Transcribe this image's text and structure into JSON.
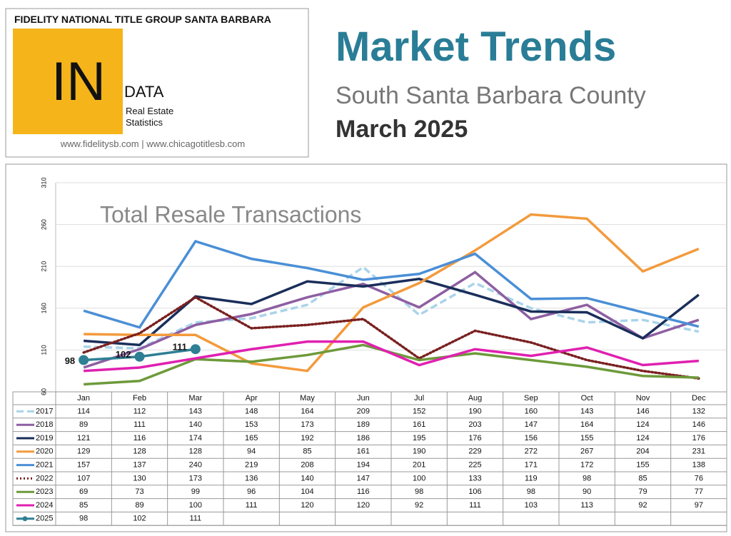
{
  "header": {
    "brand": "FIDELITY NATIONAL TITLE GROUP SANTA BARBARA",
    "logo_big": "IN",
    "logo_small": "DATA",
    "line1": "Real Estate",
    "line2": "Statistics",
    "urls": "www.fidelitysb.com | www.chicagotitlesb.com",
    "title": "Market Trends",
    "subtitle": "South Santa Barbara County",
    "date": "March 2025"
  },
  "chart_data": {
    "type": "line",
    "title": "Total Resale Transactions",
    "categories": [
      "Jan",
      "Feb",
      "Mar",
      "Apr",
      "May",
      "Jun",
      "Jul",
      "Aug",
      "Sep",
      "Oct",
      "Nov",
      "Dec"
    ],
    "ylim": [
      60,
      310
    ],
    "yticks": [
      60,
      110,
      160,
      210,
      260,
      310
    ],
    "grid": true,
    "series": [
      {
        "name": "2017",
        "color": "#a9d4ea",
        "dash": "dashed",
        "values": [
          114,
          112,
          143,
          148,
          164,
          209,
          152,
          190,
          160,
          143,
          146,
          132
        ]
      },
      {
        "name": "2018",
        "color": "#8e5ea2",
        "dash": "solid",
        "values": [
          89,
          111,
          140,
          153,
          173,
          189,
          161,
          203,
          147,
          164,
          124,
          146
        ]
      },
      {
        "name": "2019",
        "color": "#1a2e5a",
        "dash": "solid",
        "values": [
          121,
          116,
          174,
          165,
          192,
          186,
          195,
          176,
          156,
          155,
          124,
          176
        ]
      },
      {
        "name": "2020",
        "color": "#f39a3c",
        "dash": "solid",
        "values": [
          129,
          128,
          128,
          94,
          85,
          161,
          190,
          229,
          272,
          267,
          204,
          231
        ]
      },
      {
        "name": "2021",
        "color": "#4a8fd6",
        "dash": "solid",
        "values": [
          157,
          137,
          240,
          219,
          208,
          194,
          201,
          225,
          171,
          172,
          155,
          138
        ]
      },
      {
        "name": "2022",
        "color": "#7a2020",
        "dash": "dotted",
        "values": [
          107,
          130,
          173,
          136,
          140,
          147,
          100,
          133,
          119,
          98,
          85,
          76
        ]
      },
      {
        "name": "2023",
        "color": "#6d9a3a",
        "dash": "solid",
        "values": [
          69,
          73,
          99,
          96,
          104,
          116,
          98,
          106,
          98,
          90,
          79,
          77
        ]
      },
      {
        "name": "2024",
        "color": "#e020b0",
        "dash": "solid",
        "values": [
          85,
          89,
          100,
          111,
          120,
          120,
          92,
          111,
          103,
          113,
          92,
          97
        ]
      },
      {
        "name": "2025",
        "color": "#2f7f94",
        "dash": "solid",
        "marker": true,
        "data_labels": true,
        "values": [
          98,
          102,
          111,
          null,
          null,
          null,
          null,
          null,
          null,
          null,
          null,
          null
        ]
      }
    ]
  }
}
